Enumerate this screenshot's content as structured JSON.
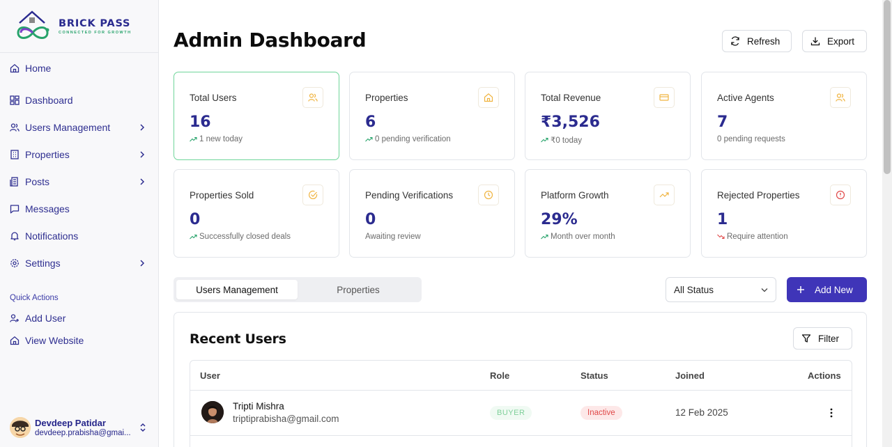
{
  "brand": {
    "name": "BRICK PASS",
    "tagline": "CONNECTED FOR GROWTH"
  },
  "sidebar": {
    "items": [
      {
        "label": "Home",
        "icon": "home-icon"
      },
      {
        "label": "Dashboard",
        "icon": "dashboard-icon"
      },
      {
        "label": "Users Management",
        "icon": "users-icon",
        "expandable": true
      },
      {
        "label": "Properties",
        "icon": "building-icon",
        "expandable": true
      },
      {
        "label": "Posts",
        "icon": "posts-icon",
        "expandable": true
      },
      {
        "label": "Messages",
        "icon": "message-icon"
      },
      {
        "label": "Notifications",
        "icon": "bell-icon"
      },
      {
        "label": "Settings",
        "icon": "gear-icon",
        "expandable": true
      }
    ],
    "quick_actions_title": "Quick Actions",
    "quick_actions": [
      {
        "label": "Add User",
        "icon": "add-user-icon"
      },
      {
        "label": "View Website",
        "icon": "home-icon"
      }
    ],
    "user": {
      "name": "Devdeep Patidar",
      "email": "devdeep.prabisha@gmai..."
    }
  },
  "header": {
    "title": "Admin Dashboard",
    "refresh_label": "Refresh",
    "export_label": "Export"
  },
  "stats": [
    {
      "label": "Total Users",
      "value": "16",
      "sub": "1 new today",
      "trend": "up",
      "icon": "users-icon"
    },
    {
      "label": "Properties",
      "value": "6",
      "sub": "0 pending verification",
      "trend": "up",
      "icon": "home-icon"
    },
    {
      "label": "Total Revenue",
      "value": "₹3,526",
      "sub": "₹0 today",
      "trend": "up",
      "icon": "card-icon"
    },
    {
      "label": "Active Agents",
      "value": "7",
      "sub": "0 pending requests",
      "trend": "none",
      "icon": "users-icon"
    },
    {
      "label": "Properties Sold",
      "value": "0",
      "sub": "Successfully closed deals",
      "trend": "up",
      "icon": "check-circle-icon"
    },
    {
      "label": "Pending Verifications",
      "value": "0",
      "sub": "Awaiting review",
      "trend": "none",
      "icon": "clock-icon"
    },
    {
      "label": "Platform Growth",
      "value": "29%",
      "sub": "Month over month",
      "trend": "up",
      "icon": "trend-up-icon"
    },
    {
      "label": "Rejected Properties",
      "value": "1",
      "sub": "Require attention",
      "trend": "down",
      "icon": "alert-circle-icon"
    }
  ],
  "tabs": [
    {
      "label": "Users Management",
      "active": true
    },
    {
      "label": "Properties",
      "active": false
    }
  ],
  "status_filter": {
    "selected": "All Status"
  },
  "add_new_label": "Add New",
  "panel": {
    "title": "Recent Users",
    "filter_label": "Filter",
    "columns": [
      "User",
      "Role",
      "Status",
      "Joined",
      "Actions"
    ],
    "rows": [
      {
        "name": "Tripti Mishra",
        "email": "triptiprabisha@gmail.com",
        "role": "BUYER",
        "status": "Inactive",
        "joined": "12 Feb 2025"
      }
    ]
  },
  "colors": {
    "accent": "#3f35b8",
    "brand_navy": "#2a2a8f",
    "success": "#27a36b",
    "danger": "#e04848",
    "icon_amber": "#f0b440"
  }
}
